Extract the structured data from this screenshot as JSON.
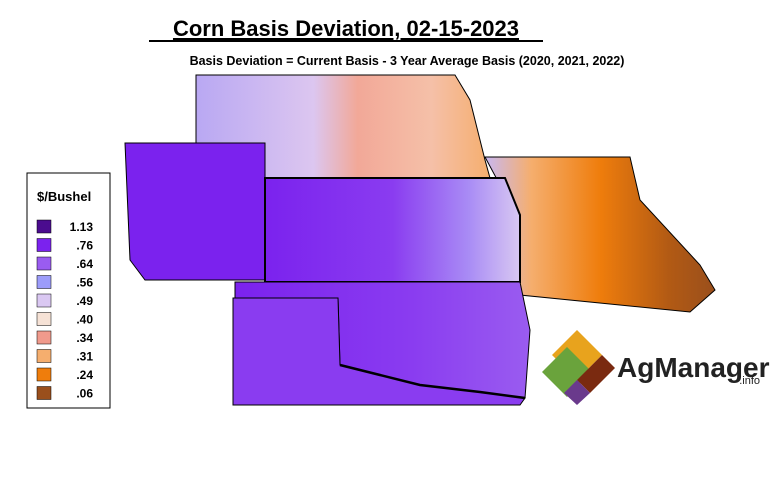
{
  "header": {
    "title": "Corn Basis Deviation, 02-15-2023",
    "subtitle": "Basis Deviation = Current Basis - 3 Year Average Basis (2020, 2021, 2022)"
  },
  "legend": {
    "title": "$/Bushel",
    "items": [
      {
        "label": "1.13",
        "color": "#4b0c8f"
      },
      {
        "label": ".76",
        "color": "#7b22ee"
      },
      {
        "label": ".64",
        "color": "#9a5cf0"
      },
      {
        "label": ".56",
        "color": "#9c9cfa"
      },
      {
        "label": ".49",
        "color": "#dac8f2"
      },
      {
        "label": ".40",
        "color": "#f6e2d6"
      },
      {
        "label": ".34",
        "color": "#f09a8c"
      },
      {
        "label": ".31",
        "color": "#f5ae6e"
      },
      {
        "label": ".24",
        "color": "#ef7d0c"
      },
      {
        "label": ".06",
        "color": "#9a4f1c"
      }
    ]
  },
  "logo": {
    "name": "AgManager",
    "suffix": ".info"
  }
}
